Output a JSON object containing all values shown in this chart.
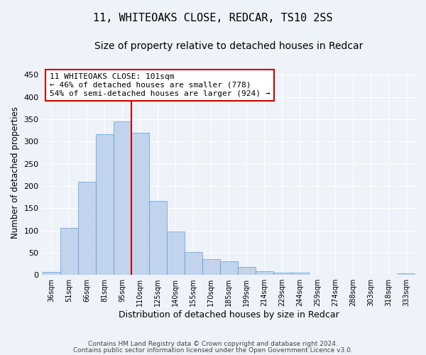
{
  "title1": "11, WHITEOAKS CLOSE, REDCAR, TS10 2SS",
  "title2": "Size of property relative to detached houses in Redcar",
  "xlabel": "Distribution of detached houses by size in Redcar",
  "ylabel": "Number of detached properties",
  "categories": [
    "36sqm",
    "51sqm",
    "66sqm",
    "81sqm",
    "95sqm",
    "110sqm",
    "125sqm",
    "140sqm",
    "155sqm",
    "170sqm",
    "185sqm",
    "199sqm",
    "214sqm",
    "229sqm",
    "244sqm",
    "259sqm",
    "274sqm",
    "288sqm",
    "303sqm",
    "318sqm",
    "333sqm"
  ],
  "values": [
    7,
    105,
    210,
    317,
    345,
    320,
    167,
    97,
    51,
    35,
    30,
    18,
    8,
    5,
    5,
    0,
    0,
    0,
    0,
    0,
    4
  ],
  "bar_color": "#aec6e8",
  "bar_edge_color": "#5a9fd4",
  "bar_alpha": 0.7,
  "vline_x": 4.5,
  "vline_color": "#cc0000",
  "annotation_text": "11 WHITEOAKS CLOSE: 101sqm\n← 46% of detached houses are smaller (778)\n54% of semi-detached houses are larger (924) →",
  "annotation_box_color": "#ffffff",
  "annotation_box_edge": "#cc0000",
  "ylim": [
    0,
    460
  ],
  "yticks": [
    0,
    50,
    100,
    150,
    200,
    250,
    300,
    350,
    400,
    450
  ],
  "background_color": "#eef2f9",
  "grid_color": "#ffffff",
  "footer_line1": "Contains HM Land Registry data © Crown copyright and database right 2024.",
  "footer_line2": "Contains public sector information licensed under the Open Government Licence v3.0.",
  "title1_fontsize": 11,
  "title2_fontsize": 10
}
